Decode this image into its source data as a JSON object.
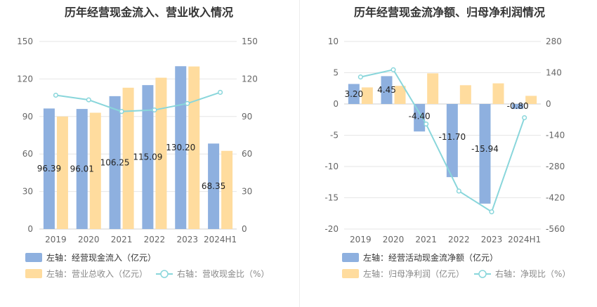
{
  "chart_data": [
    {
      "type": "bar",
      "title": "历年经营现金流入、营业收入情况",
      "categories": [
        "2019",
        "2020",
        "2021",
        "2022",
        "2023",
        "2024H1"
      ],
      "left_axis": {
        "min": 0,
        "max": 150,
        "ticks": [
          0,
          30,
          60,
          90,
          120,
          150
        ]
      },
      "right_axis": {
        "min": 0,
        "max": 150,
        "ticks": [
          0,
          30,
          60,
          90,
          120,
          150
        ]
      },
      "series": [
        {
          "name": "左轴：经营现金流入（亿元）",
          "type": "bar",
          "axis": "left",
          "color": "#8eb0df",
          "values": [
            96.39,
            96.01,
            106.25,
            115.09,
            130.2,
            68.35
          ],
          "labels": [
            "96.39",
            "96.01",
            "106.25",
            "115.09",
            "130.20",
            "68.35"
          ],
          "show_labels": true
        },
        {
          "name": "左轴：营业总收入（亿元）",
          "type": "bar",
          "axis": "left",
          "color": "#ffdc9e",
          "values": [
            90,
            93,
            113,
            121,
            130,
            62.5
          ],
          "show_labels": false
        },
        {
          "name": "右轴：营收现金比（%）",
          "type": "line",
          "axis": "right",
          "color": "#89d6db",
          "values": [
            107,
            103.3,
            94,
            95.2,
            100.4,
            109.3
          ],
          "show_labels": false
        }
      ]
    },
    {
      "type": "bar",
      "title": "历年经营现金流净额、归母净利润情况",
      "categories": [
        "2019",
        "2020",
        "2021",
        "2022",
        "2023",
        "2024H1"
      ],
      "left_axis": {
        "min": -20,
        "max": 10,
        "ticks": [
          -20,
          -15,
          -10,
          -5,
          0,
          5,
          10
        ]
      },
      "right_axis": {
        "min": -560,
        "max": 280,
        "ticks": [
          -560,
          -420,
          -280,
          -140,
          0,
          140,
          280
        ]
      },
      "series": [
        {
          "name": "左轴：经营活动现金流净额（亿元）",
          "type": "bar",
          "axis": "left",
          "color": "#8eb0df",
          "values": [
            3.2,
            4.45,
            -4.4,
            -11.7,
            -15.94,
            -0.8
          ],
          "labels": [
            "3.20",
            "4.45",
            "-4.40",
            "-11.70",
            "-15.94",
            "-0.80"
          ],
          "show_labels": true
        },
        {
          "name": "左轴：归母净利润（亿元）",
          "type": "bar",
          "axis": "left",
          "color": "#ffdc9e",
          "values": [
            2.65,
            2.9,
            4.9,
            3.0,
            3.3,
            1.3
          ],
          "show_labels": false
        },
        {
          "name": "右轴：净现比（%）",
          "type": "line",
          "axis": "right",
          "color": "#89d6db",
          "values": [
            120.8,
            153.4,
            -89.8,
            -390,
            -483,
            -61.5
          ],
          "show_labels": false
        }
      ]
    }
  ]
}
